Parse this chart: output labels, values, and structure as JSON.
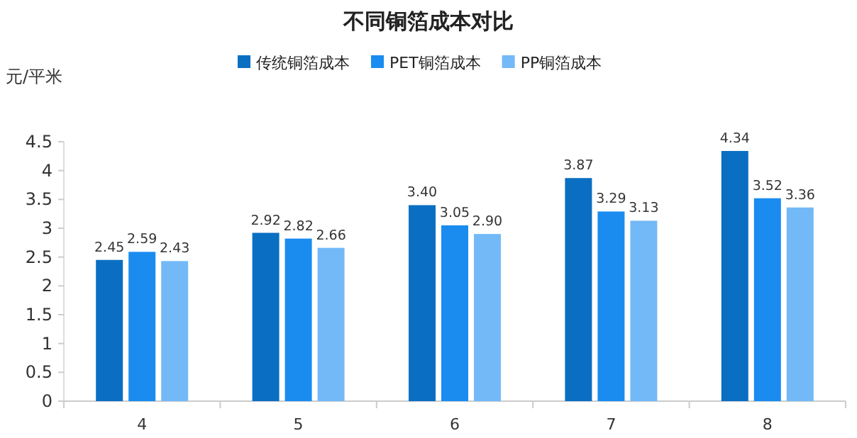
{
  "chart_data": {
    "type": "bar",
    "title": "不同铜箔成本对比",
    "ylabel": "元/平米",
    "categories": [
      "4",
      "5",
      "6",
      "7",
      "8"
    ],
    "series": [
      {
        "name": "传统铜箔成本",
        "color": "#0a6fc2",
        "values": [
          2.45,
          2.92,
          3.4,
          3.87,
          4.34
        ],
        "value_labels": [
          "2.45",
          "2.92",
          "3.40",
          "3.87",
          "4.34"
        ]
      },
      {
        "name": "PET铜箔成本",
        "color": "#1a8cf0",
        "values": [
          2.59,
          2.82,
          3.05,
          3.29,
          3.52
        ],
        "value_labels": [
          "2.59",
          "2.82",
          "3.05",
          "3.29",
          "3.52"
        ]
      },
      {
        "name": "PP铜箔成本",
        "color": "#73b9f7",
        "values": [
          2.43,
          2.66,
          2.9,
          3.13,
          3.36
        ],
        "value_labels": [
          "2.43",
          "2.66",
          "2.90",
          "3.13",
          "3.36"
        ]
      }
    ],
    "ylim": [
      0,
      4.5
    ],
    "yticks": [
      0,
      0.5,
      1,
      1.5,
      2,
      2.5,
      3,
      3.5,
      4,
      4.5
    ],
    "grid": false,
    "legend": "top"
  }
}
